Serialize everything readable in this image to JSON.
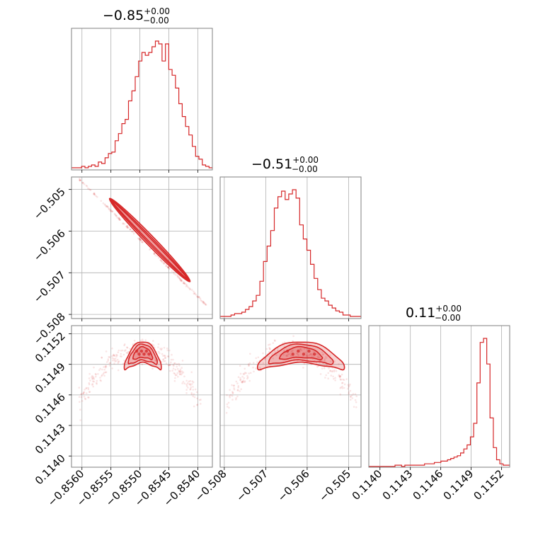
{
  "chart_data": {
    "type": "corner",
    "color": "#d62728",
    "parameters": [
      {
        "title_main": "−0.85",
        "title_plus": "+0.00",
        "title_minus": "−0.00",
        "range": [
          -0.85618,
          -0.85375
        ],
        "ticks": [
          -0.856,
          -0.8555,
          -0.855,
          -0.8545,
          -0.854
        ],
        "tick_labels": [
          "−0.8560",
          "−0.8555",
          "−0.8550",
          "−0.8545",
          "−0.8540"
        ]
      },
      {
        "title_main": "−0.51",
        "title_plus": "+0.00",
        "title_minus": "−0.00",
        "range": [
          -0.5081,
          -0.5047
        ],
        "ticks": [
          -0.508,
          -0.507,
          -0.506,
          -0.505
        ],
        "tick_labels": [
          "−0.508",
          "−0.507",
          "−0.506",
          "−0.505"
        ]
      },
      {
        "title_main": "0.11",
        "title_plus": "+0.00",
        "title_minus": "−0.00",
        "range": [
          0.11389,
          0.11528
        ],
        "ticks": [
          0.114,
          0.1143,
          0.1146,
          0.1149,
          0.1152
        ],
        "tick_labels": [
          "0.1140",
          "0.1143",
          "0.1146",
          "0.1149",
          "0.1152"
        ]
      }
    ],
    "histograms": [
      {
        "param": 0,
        "bin_range": [
          -0.85618,
          -0.85375
        ],
        "counts": [
          1,
          1,
          1,
          2,
          1,
          2,
          3,
          2,
          5,
          4,
          8,
          11,
          12,
          20,
          25,
          32,
          35,
          48,
          55,
          65,
          76,
          82,
          80,
          82,
          86,
          90,
          88,
          76,
          88,
          70,
          66,
          57,
          46,
          37,
          30,
          24,
          16,
          9,
          7,
          3,
          2,
          1
        ]
      },
      {
        "param": 1,
        "bin_range": [
          -0.5081,
          -0.5047
        ],
        "counts": [
          1,
          1,
          1,
          2,
          3,
          3,
          4,
          6,
          8,
          12,
          16,
          26,
          40,
          51,
          62,
          78,
          86,
          90,
          84,
          88,
          91,
          85,
          66,
          56,
          48,
          38,
          28,
          20,
          14,
          12,
          9,
          7,
          5,
          4,
          2,
          2,
          1,
          1,
          1
        ]
      },
      {
        "param": 2,
        "bin_range": [
          0.11389,
          0.11528
        ],
        "counts": [
          0,
          0,
          0,
          0,
          0,
          0,
          0,
          0,
          1,
          1,
          0,
          1,
          1,
          1,
          1,
          1,
          1,
          2,
          2,
          2,
          3,
          3,
          4,
          4,
          5,
          6,
          7,
          8,
          10,
          13,
          16,
          22,
          32,
          62,
          92,
          95,
          76,
          36,
          14,
          5,
          2,
          1,
          1
        ]
      }
    ],
    "scatter": [
      {
        "x_param": 0,
        "y_param": 1,
        "shape": "linear",
        "x_range": [
          -0.85605,
          -0.85385
        ],
        "y_range": [
          -0.50475,
          -0.50778
        ],
        "n": 170
      },
      {
        "x_param": 0,
        "y_param": 2,
        "shape": "arch",
        "x_range": [
          -0.85605,
          -0.85395
        ],
        "n": 300
      },
      {
        "x_param": 1,
        "y_param": 2,
        "shape": "arch",
        "x_range": [
          -0.50795,
          -0.5048
        ],
        "n": 300
      }
    ],
    "contours": [
      {
        "x_param": 0,
        "y_param": 1,
        "shape": "ellipse",
        "p1": [
          -0.85548,
          -0.50528
        ],
        "p2": [
          -0.85418,
          -0.50715
        ],
        "widths": [
          2.2,
          4.2,
          6.4
        ]
      },
      {
        "x_param": 0,
        "y_param": 2,
        "shape": "arch",
        "center": [
          -0.85495,
          0.11502
        ],
        "levels": [
          {
            "hw": 0.00032,
            "hh": 0.000105,
            "droop": 0.00015
          },
          {
            "hw": 0.00025,
            "hh": 8e-05,
            "droop": 0.0001
          },
          {
            "hw": 0.00017,
            "hh": 5.2e-05,
            "droop": 6e-05
          }
        ]
      },
      {
        "x_param": 1,
        "y_param": 2,
        "shape": "arch",
        "center": [
          -0.50615,
          0.11502
        ],
        "levels": [
          {
            "hw": 0.00105,
            "hh": 0.000105,
            "droop": 0.00015
          },
          {
            "hw": 0.00078,
            "hh": 8e-05,
            "droop": 0.0001
          },
          {
            "hw": 0.00052,
            "hh": 5.2e-05,
            "droop": 6e-05
          }
        ]
      }
    ],
    "grid": true
  }
}
